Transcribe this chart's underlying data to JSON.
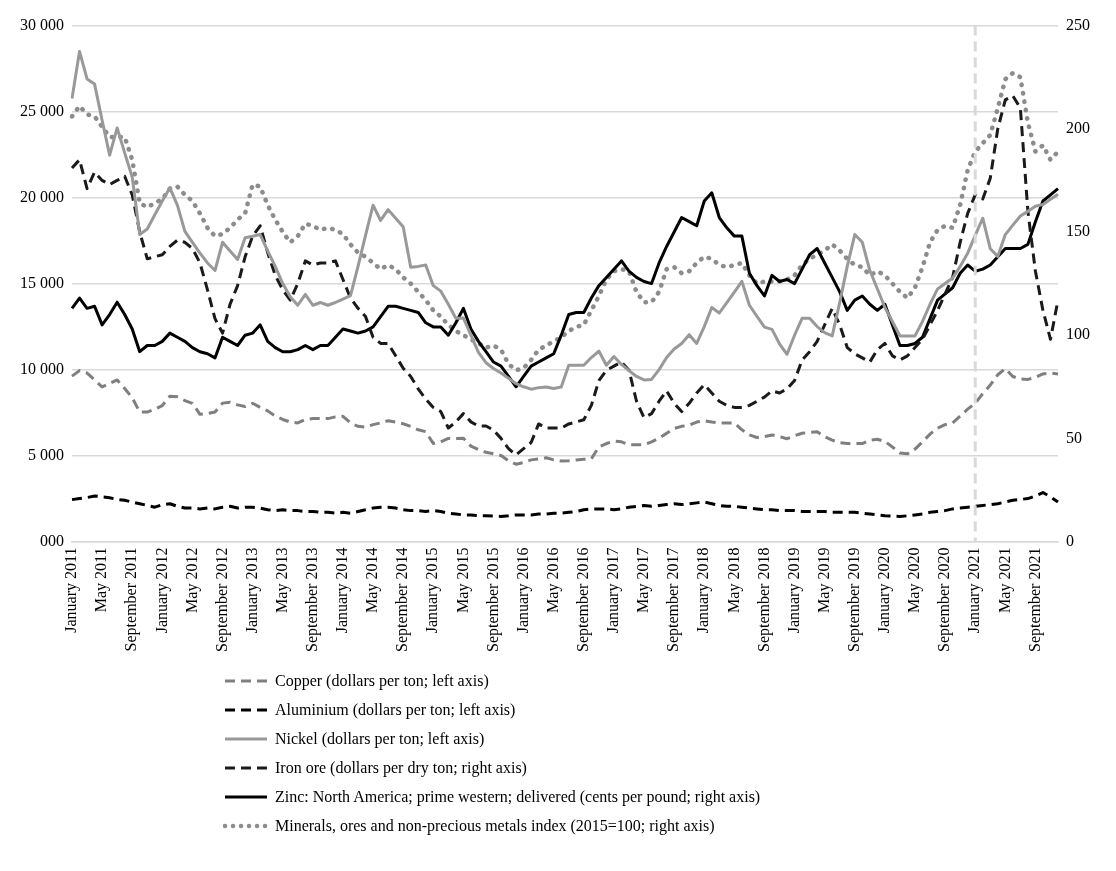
{
  "chart_data": {
    "type": "line",
    "categories": [
      "January 2011",
      null,
      null,
      null,
      "May 2011",
      null,
      null,
      null,
      "September 2011",
      null,
      null,
      null,
      "January 2012",
      null,
      null,
      null,
      "May 2012",
      null,
      null,
      null,
      "September 2012",
      null,
      null,
      null,
      "January 2013",
      null,
      null,
      null,
      "May 2013",
      null,
      null,
      null,
      "September 2013",
      null,
      null,
      null,
      "January 2014",
      null,
      null,
      null,
      "May 2014",
      null,
      null,
      null,
      "September 2014",
      null,
      null,
      null,
      "January 2015",
      null,
      null,
      null,
      "May 2015",
      null,
      null,
      null,
      "September 2015",
      null,
      null,
      null,
      "January 2016",
      null,
      null,
      null,
      "May 2016",
      null,
      null,
      null,
      "September 2016",
      null,
      null,
      null,
      "January 2017",
      null,
      null,
      null,
      "May 2017",
      null,
      null,
      null,
      "September 2017",
      null,
      null,
      null,
      "January 2018",
      null,
      null,
      null,
      "May 2018",
      null,
      null,
      null,
      "September 2018",
      null,
      null,
      null,
      "January 2019",
      null,
      null,
      null,
      "May 2019",
      null,
      null,
      null,
      "September 2019",
      null,
      null,
      null,
      "January 2020",
      null,
      null,
      null,
      "May 2020",
      null,
      null,
      null,
      "September 2020",
      null,
      null,
      null,
      "January 2021",
      null,
      null,
      null,
      "May 2021",
      null,
      null,
      null,
      "September 2021",
      null,
      null,
      null
    ],
    "series": [
      {
        "name": "Copper (dollars per ton; left axis)",
        "color": "#7f7f7f",
        "line_style": "dashed",
        "axis": "y",
        "values": [
          9620,
          9940,
          9800,
          9400,
          8990,
          9200,
          9400,
          8900,
          8360,
          7530,
          7530,
          7700,
          7910,
          8450,
          8420,
          8200,
          8040,
          7400,
          7450,
          7530,
          8050,
          8100,
          7950,
          7850,
          8040,
          7800,
          7600,
          7300,
          7100,
          6950,
          6900,
          7100,
          7150,
          7150,
          7150,
          7250,
          7280,
          6900,
          6700,
          6650,
          6800,
          6900,
          7030,
          6950,
          6850,
          6700,
          6500,
          6390,
          5700,
          5800,
          6000,
          6000,
          6010,
          5550,
          5350,
          5190,
          5100,
          5000,
          4700,
          4500,
          4600,
          4750,
          4800,
          4870,
          4750,
          4680,
          4700,
          4750,
          4780,
          4810,
          5510,
          5700,
          5850,
          5800,
          5630,
          5630,
          5630,
          5800,
          6010,
          6300,
          6580,
          6700,
          6770,
          6950,
          7030,
          6950,
          6900,
          6900,
          6900,
          6500,
          6200,
          6050,
          6100,
          6200,
          6100,
          5980,
          6150,
          6300,
          6350,
          6390,
          6100,
          5900,
          5750,
          5700,
          5700,
          5700,
          5900,
          5950,
          5820,
          5500,
          5150,
          5100,
          5380,
          5800,
          6250,
          6600,
          6800,
          6900,
          7300,
          7700,
          8040,
          8600,
          9100,
          9700,
          10060,
          9600,
          9450,
          9430,
          9550,
          9750,
          9800,
          9750
        ]
      },
      {
        "name": "Aluminium (dollars per ton; left axis)",
        "color": "#000000",
        "line_style": "dashed",
        "axis": "y",
        "values": [
          2440,
          2500,
          2560,
          2650,
          2600,
          2550,
          2450,
          2400,
          2300,
          2200,
          2100,
          2000,
          2150,
          2200,
          2050,
          1950,
          1950,
          1900,
          1950,
          1900,
          2000,
          2050,
          1950,
          2000,
          2000,
          1950,
          1850,
          1800,
          1850,
          1800,
          1800,
          1750,
          1750,
          1700,
          1700,
          1650,
          1700,
          1650,
          1750,
          1850,
          1950,
          2000,
          2000,
          1950,
          1850,
          1800,
          1800,
          1750,
          1800,
          1750,
          1650,
          1600,
          1550,
          1550,
          1500,
          1500,
          1480,
          1460,
          1500,
          1550,
          1550,
          1550,
          1600,
          1600,
          1650,
          1650,
          1700,
          1750,
          1850,
          1900,
          1900,
          1900,
          1850,
          1900,
          2000,
          2050,
          2100,
          2050,
          2100,
          2150,
          2200,
          2150,
          2200,
          2250,
          2300,
          2200,
          2100,
          2050,
          2050,
          2000,
          1950,
          1900,
          1850,
          1850,
          1800,
          1800,
          1800,
          1750,
          1750,
          1750,
          1750,
          1700,
          1700,
          1700,
          1700,
          1650,
          1600,
          1550,
          1500,
          1480,
          1460,
          1500,
          1550,
          1600,
          1700,
          1750,
          1800,
          1900,
          1950,
          2000,
          2050,
          2100,
          2150,
          2200,
          2300,
          2400,
          2450,
          2500,
          2650,
          2850,
          2600,
          2300
        ]
      },
      {
        "name": "Nickel (dollars per ton; left axis)",
        "color": "#999999",
        "line_style": "solid",
        "axis": "y",
        "values": [
          25760,
          28500,
          26900,
          26600,
          24500,
          22470,
          24050,
          22600,
          21200,
          17850,
          18170,
          19000,
          19800,
          20570,
          19560,
          18040,
          17400,
          16770,
          16200,
          15760,
          17400,
          16900,
          16400,
          17660,
          17750,
          17850,
          16900,
          16000,
          15000,
          14240,
          13740,
          14370,
          13740,
          13900,
          13740,
          13900,
          14100,
          14300,
          16000,
          17800,
          19560,
          18670,
          19300,
          18800,
          18300,
          15950,
          16000,
          16080,
          14880,
          14560,
          13800,
          12980,
          13000,
          12000,
          11000,
          10400,
          10060,
          9800,
          9500,
          9180,
          9000,
          8860,
          8950,
          8990,
          8900,
          8990,
          10250,
          10250,
          10250,
          10700,
          11080,
          10250,
          10760,
          10300,
          9940,
          9600,
          9400,
          9430,
          10000,
          10700,
          11200,
          11520,
          12030,
          11520,
          12500,
          13610,
          13290,
          13900,
          14500,
          15130,
          13740,
          13100,
          12470,
          12340,
          11500,
          10890,
          12000,
          12980,
          12980,
          12500,
          12150,
          11960,
          13900,
          16000,
          17850,
          17400,
          15760,
          14700,
          13610,
          12800,
          11960,
          11960,
          11960,
          12800,
          13800,
          14690,
          15000,
          15320,
          16000,
          16770,
          17800,
          18800,
          17030,
          16580,
          17850,
          18400,
          18930,
          19200,
          19500,
          19600,
          19900,
          20190
        ]
      },
      {
        "name": "Iron ore (dollars per dry ton; right axis)",
        "color": "#1a1a1a",
        "line_style": "dashed",
        "axis": "y2",
        "values": [
          181,
          185,
          171,
          179,
          175,
          173,
          175,
          177,
          168,
          150,
          137,
          138,
          139,
          143,
          146,
          145,
          142,
          135,
          122,
          108,
          101,
          115,
          124,
          138,
          148,
          153,
          140,
          129,
          122,
          117,
          125,
          136,
          134,
          135,
          135,
          136,
          127,
          118,
          113,
          109,
          99,
          96,
          96,
          90,
          84,
          80,
          74,
          69,
          65,
          63,
          55,
          58,
          62,
          58,
          56,
          56,
          54,
          50,
          45,
          42,
          45,
          48,
          57,
          55,
          55,
          55,
          57,
          58,
          59,
          66,
          78,
          83,
          85,
          87,
          83,
          68,
          60,
          62,
          68,
          73,
          67,
          63,
          67,
          72,
          76,
          72,
          68,
          66,
          65,
          65,
          66,
          68,
          70,
          73,
          72,
          74,
          78,
          88,
          92,
          97,
          105,
          113,
          105,
          94,
          91,
          89,
          87,
          93,
          96,
          90,
          88,
          90,
          94,
          98,
          105,
          112,
          120,
          128,
          145,
          159,
          168,
          166,
          176,
          200,
          214,
          216,
          210,
          160,
          131,
          112,
          98,
          117
        ]
      },
      {
        "name": "Zinc: North America; prime western; delivered (cents per pound; right axis)",
        "color": "#000000",
        "line_style": "solid",
        "axis": "y2",
        "values": [
          113,
          118,
          113,
          114,
          105,
          110,
          116,
          110,
          103,
          92,
          95,
          95,
          97,
          101,
          99,
          97,
          94,
          92,
          91,
          89,
          99,
          97,
          95,
          100,
          101,
          105,
          97,
          94,
          92,
          92,
          93,
          95,
          93,
          95,
          95,
          99,
          103,
          102,
          101,
          102,
          104,
          109,
          114,
          114,
          113,
          112,
          111,
          106,
          104,
          104,
          100,
          106,
          113,
          103,
          97,
          92,
          87,
          85,
          80,
          75,
          80,
          85,
          87,
          89,
          91,
          100,
          110,
          111,
          111,
          118,
          124,
          128,
          132,
          136,
          131,
          128,
          126,
          125,
          135,
          143,
          150,
          157,
          155,
          153,
          165,
          169,
          157,
          152,
          148,
          148,
          130,
          124,
          119,
          129,
          126,
          127,
          125,
          132,
          139,
          142,
          135,
          128,
          121,
          112,
          117,
          119,
          115,
          112,
          115,
          105,
          95,
          95,
          96,
          99,
          108,
          117,
          120,
          123,
          130,
          134,
          131,
          132,
          134,
          138,
          142,
          142,
          142,
          144,
          155,
          165,
          168,
          171
        ]
      },
      {
        "name": "Minerals, ores and non-precious metals index (2015=100; right axis)",
        "color": "#8c8c8c",
        "line_style": "dotted",
        "axis": "y2",
        "values": [
          206,
          211,
          207,
          206,
          201,
          196,
          196,
          196,
          185,
          164,
          162,
          164,
          166,
          171,
          172,
          168,
          165,
          159,
          152,
          148,
          149,
          152,
          156,
          159,
          173,
          172,
          163,
          156,
          150,
          145,
          148,
          154,
          153,
          151,
          152,
          151,
          149,
          144,
          140,
          138,
          135,
          132,
          134,
          132,
          128,
          125,
          121,
          117,
          112,
          109,
          105,
          102,
          100,
          98,
          96,
          94,
          95,
          93,
          86,
          83,
          84,
          88,
          93,
          95,
          97,
          99,
          102,
          104,
          105,
          112,
          119,
          127,
          131,
          132,
          131,
          121,
          116,
          116,
          121,
          132,
          133,
          130,
          131,
          135,
          138,
          137,
          134,
          133,
          134,
          135,
          129,
          125,
          126,
          126,
          126,
          127,
          129,
          134,
          137,
          139,
          141,
          144,
          141,
          137,
          134,
          133,
          129,
          131,
          129,
          125,
          121,
          118,
          123,
          133,
          145,
          151,
          153,
          152,
          163,
          180,
          189,
          193,
          197,
          210,
          224,
          227,
          225,
          203,
          189,
          192,
          185,
          189
        ]
      }
    ],
    "ylim": [
      0,
      30000
    ],
    "yticks": [
      {
        "value": 0,
        "label": "000"
      },
      {
        "value": 5000,
        "label": "5 000"
      },
      {
        "value": 10000,
        "label": "10 000"
      },
      {
        "value": 15000,
        "label": "15 000"
      },
      {
        "value": 20000,
        "label": "20 000"
      },
      {
        "value": 25000,
        "label": "25 000"
      },
      {
        "value": 30000,
        "label": "30 000"
      }
    ],
    "y2lim": [
      0,
      250
    ],
    "y2ticks": [
      0,
      50,
      100,
      150,
      200,
      250
    ],
    "ref_lines": [
      {
        "axis": "x",
        "value": "January 2021",
        "color": "#d9d9d9",
        "line_style": "dashed"
      }
    ],
    "grid": "y",
    "legend": "bottom",
    "marker": "none"
  }
}
